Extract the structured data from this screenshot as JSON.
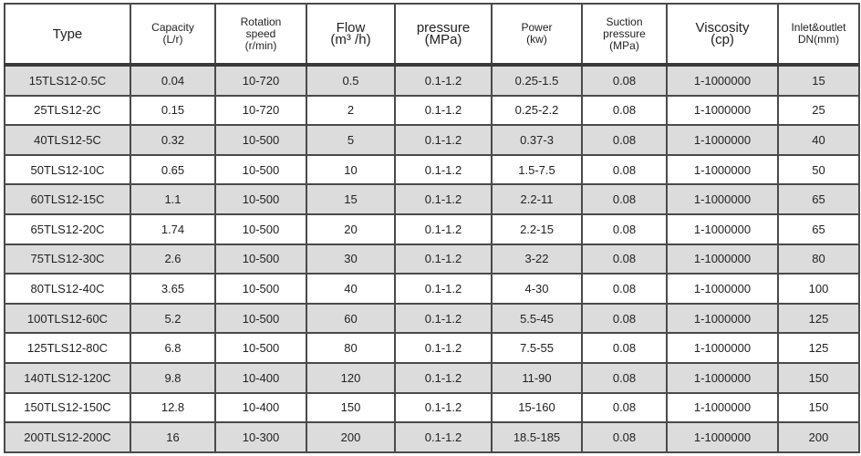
{
  "headers": [
    {
      "l1": "Type",
      "l2": "",
      "l3": ""
    },
    {
      "l1": "Capacity",
      "l2": "(L/r)",
      "l3": ""
    },
    {
      "l1": "Rotation",
      "l2": "speed",
      "l3": "(r/min)"
    },
    {
      "l1": "Flow",
      "l2": "(m³ /h)",
      "l3": ""
    },
    {
      "l1": "pressure",
      "l2": "(MPa)",
      "l3": ""
    },
    {
      "l1": "Power",
      "l2": "(kw)",
      "l3": ""
    },
    {
      "l1": "Suction",
      "l2": "pressure",
      "l3": "(MPa)"
    },
    {
      "l1": "Viscosity",
      "l2": "(cp)",
      "l3": ""
    },
    {
      "l1": "Inlet&outlet",
      "l2": "DN(mm)",
      "l3": ""
    }
  ],
  "rows": [
    [
      "15TLS12-0.5C",
      "0.04",
      "10-720",
      "0.5",
      "0.1-1.2",
      "0.25-1.5",
      "0.08",
      "1-1000000",
      "15"
    ],
    [
      "25TLS12-2C",
      "0.15",
      "10-720",
      "2",
      "0.1-1.2",
      "0.25-2.2",
      "0.08",
      "1-1000000",
      "25"
    ],
    [
      "40TLS12-5C",
      "0.32",
      "10-500",
      "5",
      "0.1-1.2",
      "0.37-3",
      "0.08",
      "1-1000000",
      "40"
    ],
    [
      "50TLS12-10C",
      "0.65",
      "10-500",
      "10",
      "0.1-1.2",
      "1.5-7.5",
      "0.08",
      "1-1000000",
      "50"
    ],
    [
      "60TLS12-15C",
      "1.1",
      "10-500",
      "15",
      "0.1-1.2",
      "2.2-11",
      "0.08",
      "1-1000000",
      "65"
    ],
    [
      "65TLS12-20C",
      "1.74",
      "10-500",
      "20",
      "0.1-1.2",
      "2.2-15",
      "0.08",
      "1-1000000",
      "65"
    ],
    [
      "75TLS12-30C",
      "2.6",
      "10-500",
      "30",
      "0.1-1.2",
      "3-22",
      "0.08",
      "1-1000000",
      "80"
    ],
    [
      "80TLS12-40C",
      "3.65",
      "10-500",
      "40",
      "0.1-1.2",
      "4-30",
      "0.08",
      "1-1000000",
      "100"
    ],
    [
      "100TLS12-60C",
      "5.2",
      "10-500",
      "60",
      "0.1-1.2",
      "5.5-45",
      "0.08",
      "1-1000000",
      "125"
    ],
    [
      "125TLS12-80C",
      "6.8",
      "10-500",
      "80",
      "0.1-1.2",
      "7.5-55",
      "0.08",
      "1-1000000",
      "125"
    ],
    [
      "140TLS12-120C",
      "9.8",
      "10-400",
      "120",
      "0.1-1.2",
      "11-90",
      "0.08",
      "1-1000000",
      "150"
    ],
    [
      "150TLS12-150C",
      "12.8",
      "10-400",
      "150",
      "0.1-1.2",
      "15-160",
      "0.08",
      "1-1000000",
      "150"
    ],
    [
      "200TLS12-200C",
      "16",
      "10-300",
      "200",
      "0.1-1.2",
      "18.5-185",
      "0.08",
      "1-1000000",
      "200"
    ]
  ]
}
